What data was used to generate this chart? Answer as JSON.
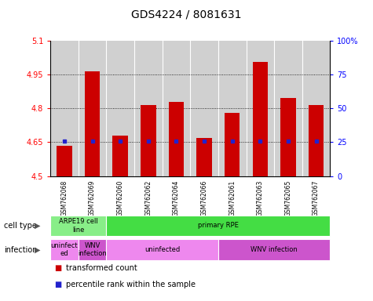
{
  "title": "GDS4224 / 8081631",
  "samples": [
    "GSM762068",
    "GSM762069",
    "GSM762060",
    "GSM762062",
    "GSM762064",
    "GSM762066",
    "GSM762061",
    "GSM762063",
    "GSM762065",
    "GSM762067"
  ],
  "bar_values": [
    4.635,
    4.965,
    4.68,
    4.815,
    4.83,
    4.67,
    4.78,
    5.005,
    4.845,
    4.815
  ],
  "percentile_values": [
    4.655,
    4.655,
    4.655,
    4.655,
    4.655,
    4.655,
    4.655,
    4.655,
    4.655,
    4.655
  ],
  "bar_color": "#cc0000",
  "percentile_color": "#2222cc",
  "ylim": [
    4.5,
    5.1
  ],
  "yticks": [
    4.5,
    4.65,
    4.8,
    4.95,
    5.1
  ],
  "ytick_labels": [
    "4.5",
    "4.65",
    "4.8",
    "4.95",
    "5.1"
  ],
  "right_yticks": [
    0,
    25,
    50,
    75,
    100
  ],
  "right_ytick_labels": [
    "0",
    "25",
    "50",
    "75",
    "100%"
  ],
  "grid_values": [
    4.65,
    4.8,
    4.95
  ],
  "cell_type_segs": [
    {
      "text": "ARPE19 cell\nline",
      "start": 0,
      "end": 2,
      "color": "#88ee88"
    },
    {
      "text": "primary RPE",
      "start": 2,
      "end": 10,
      "color": "#44dd44"
    }
  ],
  "infection_segs": [
    {
      "text": "uninfect\ned",
      "start": 0,
      "end": 1,
      "color": "#ee88ee"
    },
    {
      "text": "WNV\ninfection",
      "start": 1,
      "end": 2,
      "color": "#cc55cc"
    },
    {
      "text": "uninfected",
      "start": 2,
      "end": 6,
      "color": "#ee88ee"
    },
    {
      "text": "WNV infection",
      "start": 6,
      "end": 10,
      "color": "#cc55cc"
    }
  ],
  "bar_width": 0.55,
  "legend_items": [
    {
      "label": "transformed count",
      "color": "#cc0000"
    },
    {
      "label": "percentile rank within the sample",
      "color": "#2222cc"
    }
  ],
  "col_bg_color": "#d0d0d0",
  "spine_color": "#888888",
  "title_fontsize": 10,
  "tick_fontsize": 7,
  "sample_fontsize": 5.5,
  "annot_fontsize": 6,
  "legend_fontsize": 7
}
